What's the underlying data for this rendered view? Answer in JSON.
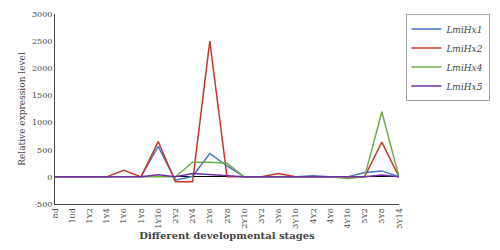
{
  "chart_data": {
    "type": "line",
    "xlabel": "Different developmental stages",
    "ylabel": "Relative expression level",
    "categories": [
      "8d",
      "10d",
      "1Y2",
      "1Y4",
      "1Y6",
      "1Y8",
      "1Y10",
      "2Y2",
      "2Y4",
      "2Y6",
      "2Y8",
      "2Y10",
      "3Y2",
      "3Y6",
      "3Y10",
      "4Y2",
      "4Y6",
      "4Y10",
      "5Y2",
      "5Y8",
      "5Y14"
    ],
    "series": [
      {
        "name": "LmiHx1",
        "color": "#4472C4",
        "values": [
          0,
          0,
          0,
          0,
          0,
          5,
          560,
          -60,
          10,
          430,
          200,
          0,
          0,
          0,
          0,
          20,
          0,
          0,
          80,
          110,
          0
        ]
      },
      {
        "name": "LmiHx2",
        "color": "#C0392B",
        "values": [
          0,
          0,
          0,
          0,
          120,
          0,
          650,
          -90,
          -90,
          2500,
          0,
          0,
          0,
          60,
          0,
          0,
          0,
          0,
          0,
          640,
          0
        ]
      },
      {
        "name": "LmiHx4",
        "color": "#70AD47",
        "values": [
          0,
          0,
          0,
          0,
          0,
          0,
          0,
          0,
          270,
          270,
          250,
          0,
          0,
          0,
          0,
          0,
          0,
          -30,
          0,
          1200,
          0
        ]
      },
      {
        "name": "LmiHx5",
        "color": "#7030A0",
        "values": [
          0,
          0,
          0,
          0,
          0,
          0,
          40,
          0,
          60,
          40,
          10,
          0,
          0,
          0,
          0,
          0,
          0,
          0,
          0,
          35,
          0
        ]
      }
    ],
    "ylim": [
      -500,
      3000
    ],
    "yticks": [
      -500,
      0,
      500,
      1000,
      1500,
      2000,
      2500,
      3000
    ],
    "grid": false,
    "legend": "right"
  }
}
